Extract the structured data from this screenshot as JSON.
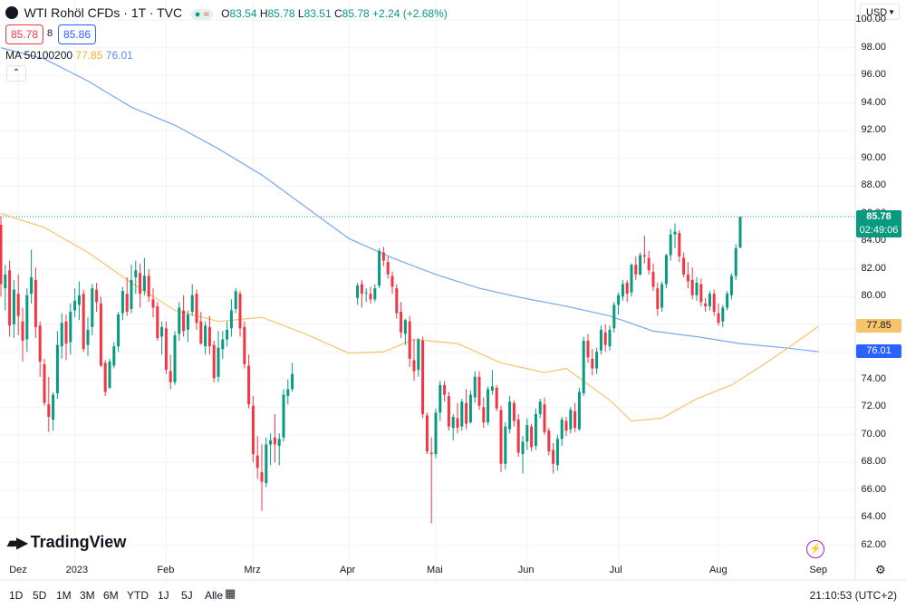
{
  "header": {
    "symbol": "WTI Rohöl CFDs · 1T · TVC",
    "ohlc": {
      "o_label": "O",
      "o": "83.54",
      "h_label": "H",
      "h": "85.78",
      "l_label": "L",
      "l": "83.51",
      "c_label": "C",
      "c": "85.78",
      "change": "+2.24 (+2.68%)"
    },
    "bid": "85.78",
    "spread": "8",
    "ask": "85.86",
    "ma_label": "MA 50100200",
    "ma1_value": "77.85",
    "ma2_value": "76.01",
    "currency": "USD"
  },
  "price_labels": {
    "last": "85.78",
    "countdown": "02:49:06",
    "ma1": "77.85",
    "ma2": "76.01"
  },
  "logo_text": "TradingView",
  "timeframes": [
    "1D",
    "5D",
    "1M",
    "3M",
    "6M",
    "YTD",
    "1J",
    "5J",
    "Alle"
  ],
  "clock": "21:10:53 (UTC+2)",
  "colors": {
    "up": "#089981",
    "down": "#f23645",
    "ma1": "#f7c46c",
    "ma2": "#7aa7f0",
    "grid": "#f0f3fa",
    "bid_text": "#f23645",
    "ask_text": "#2962ff"
  },
  "chart_data": {
    "type": "candlestick",
    "title": "WTI Rohöl CFDs · 1T · TVC",
    "ylim": [
      61,
      101
    ],
    "y_ticks": [
      "62.00",
      "64.00",
      "66.00",
      "68.00",
      "70.00",
      "72.00",
      "74.00",
      "76.00",
      "78.00",
      "80.00",
      "82.00",
      "84.00",
      "86.00",
      "88.00",
      "90.00",
      "92.00",
      "94.00",
      "96.00",
      "98.00",
      "100.00"
    ],
    "x_ticks": [
      {
        "label": "Dez",
        "index": 4
      },
      {
        "label": "2023",
        "index": 17
      },
      {
        "label": "Feb",
        "index": 38
      },
      {
        "label": "Mrz",
        "index": 58
      },
      {
        "label": "Apr",
        "index": 80
      },
      {
        "label": "Mai",
        "index": 100
      },
      {
        "label": "Jun",
        "index": 121
      },
      {
        "label": "Jul",
        "index": 142
      },
      {
        "label": "Aug",
        "index": 165
      },
      {
        "label": "Sep",
        "index": 188
      }
    ],
    "ohlc": [
      [
        85.2,
        85.8,
        80.0,
        80.9
      ],
      [
        80.6,
        82.3,
        79.0,
        81.6
      ],
      [
        81.9,
        82.6,
        77.1,
        77.9
      ],
      [
        78.0,
        81.2,
        77.0,
        80.5
      ],
      [
        80.2,
        81.6,
        77.2,
        78.6
      ],
      [
        78.2,
        79.2,
        75.3,
        76.8
      ],
      [
        76.9,
        80.6,
        76.0,
        80.1
      ],
      [
        80.2,
        83.4,
        79.5,
        81.4
      ],
      [
        81.2,
        82.1,
        77.0,
        77.8
      ],
      [
        77.9,
        78.2,
        74.2,
        75.3
      ],
      [
        75.1,
        75.5,
        72.1,
        72.3
      ],
      [
        72.2,
        74.2,
        70.2,
        71.3
      ],
      [
        71.1,
        73.1,
        70.3,
        72.9
      ],
      [
        73.0,
        77.5,
        72.6,
        76.5
      ],
      [
        76.4,
        78.8,
        75.5,
        78.1
      ],
      [
        78.2,
        78.7,
        75.4,
        76.6
      ],
      [
        76.7,
        79.5,
        75.8,
        78.9
      ],
      [
        79.0,
        80.6,
        78.5,
        79.7
      ],
      [
        79.4,
        81.1,
        78.3,
        80.1
      ],
      [
        80.2,
        80.5,
        76.0,
        76.2
      ],
      [
        76.5,
        78.5,
        75.7,
        77.6
      ],
      [
        77.8,
        80.9,
        77.2,
        80.6
      ],
      [
        80.5,
        81.0,
        78.9,
        79.6
      ],
      [
        79.5,
        80.0,
        74.9,
        75.0
      ],
      [
        75.2,
        75.4,
        72.8,
        73.1
      ],
      [
        73.4,
        75.5,
        73.3,
        75.3
      ],
      [
        75.0,
        76.7,
        74.8,
        76.4
      ],
      [
        76.4,
        78.9,
        76.0,
        78.7
      ],
      [
        78.8,
        80.7,
        78.3,
        80.4
      ],
      [
        80.2,
        81.4,
        78.6,
        78.9
      ],
      [
        79.1,
        82.3,
        78.8,
        81.2
      ],
      [
        81.4,
        82.6,
        80.2,
        81.9
      ],
      [
        81.7,
        82.4,
        79.2,
        80.2
      ],
      [
        80.4,
        82.8,
        80.1,
        81.5
      ],
      [
        81.5,
        82.0,
        79.6,
        80.0
      ],
      [
        79.8,
        80.6,
        78.5,
        79.2
      ],
      [
        79.3,
        79.6,
        76.8,
        77.0
      ],
      [
        77.1,
        78.2,
        75.8,
        77.8
      ],
      [
        77.7,
        78.2,
        74.4,
        74.7
      ],
      [
        74.6,
        75.8,
        73.3,
        73.8
      ],
      [
        73.8,
        77.5,
        73.6,
        77.2
      ],
      [
        77.3,
        79.6,
        76.8,
        79.2
      ],
      [
        79.0,
        80.1,
        77.1,
        77.5
      ],
      [
        77.6,
        79.0,
        76.7,
        78.7
      ],
      [
        78.9,
        80.9,
        78.6,
        80.1
      ],
      [
        80.2,
        80.5,
        77.6,
        78.1
      ],
      [
        78.2,
        78.9,
        76.5,
        76.6
      ],
      [
        76.4,
        78.2,
        75.8,
        77.9
      ],
      [
        77.8,
        78.6,
        75.8,
        76.4
      ],
      [
        76.5,
        76.8,
        73.8,
        74.1
      ],
      [
        74.2,
        77.5,
        73.8,
        76.3
      ],
      [
        76.2,
        77.5,
        75.5,
        76.9
      ],
      [
        76.9,
        78.2,
        76.4,
        77.6
      ],
      [
        77.7,
        79.8,
        77.1,
        79.0
      ],
      [
        79.1,
        80.6,
        78.8,
        80.4
      ],
      [
        80.2,
        80.4,
        77.1,
        77.7
      ],
      [
        77.8,
        78.2,
        74.8,
        75.1
      ],
      [
        75.0,
        75.8,
        71.9,
        72.2
      ],
      [
        72.1,
        72.8,
        68.0,
        68.6
      ],
      [
        68.5,
        69.9,
        66.8,
        67.6
      ],
      [
        67.3,
        69.3,
        64.5,
        66.6
      ],
      [
        66.5,
        69.8,
        66.2,
        69.3
      ],
      [
        69.3,
        70.1,
        67.8,
        69.6
      ],
      [
        69.8,
        71.5,
        68.0,
        69.3
      ],
      [
        69.2,
        70.1,
        67.8,
        69.7
      ],
      [
        69.8,
        73.3,
        69.5,
        72.9
      ],
      [
        72.8,
        74.0,
        72.2,
        73.3
      ],
      [
        73.3,
        75.2,
        73.1,
        74.4
      ],
      [
        79.9,
        81.0,
        79.4,
        80.8
      ],
      [
        80.9,
        81.2,
        79.2,
        80.2
      ],
      [
        80.3,
        80.6,
        79.6,
        80.3
      ],
      [
        80.2,
        80.7,
        79.5,
        79.8
      ],
      [
        79.8,
        80.9,
        79.6,
        80.6
      ],
      [
        80.8,
        83.5,
        80.6,
        83.3
      ],
      [
        83.2,
        83.6,
        82.2,
        82.6
      ],
      [
        82.5,
        82.9,
        81.3,
        81.6
      ],
      [
        81.5,
        81.8,
        80.2,
        80.7
      ],
      [
        80.6,
        80.9,
        78.4,
        78.8
      ],
      [
        78.9,
        79.6,
        77.0,
        77.4
      ],
      [
        77.3,
        78.4,
        76.5,
        78.3
      ],
      [
        78.2,
        78.6,
        74.9,
        75.5
      ],
      [
        75.4,
        76.9,
        73.9,
        74.6
      ],
      [
        74.7,
        77.0,
        74.2,
        76.9
      ],
      [
        76.8,
        77.1,
        71.2,
        71.5
      ],
      [
        71.4,
        71.6,
        68.6,
        68.8
      ],
      [
        68.7,
        69.8,
        63.6,
        68.6
      ],
      [
        68.6,
        71.9,
        68.3,
        71.6
      ],
      [
        71.6,
        73.9,
        71.0,
        73.6
      ],
      [
        73.6,
        73.9,
        72.4,
        72.9
      ],
      [
        72.8,
        73.1,
        70.3,
        70.6
      ],
      [
        70.5,
        71.5,
        69.6,
        71.3
      ],
      [
        71.2,
        72.3,
        70.1,
        70.5
      ],
      [
        70.6,
        72.6,
        70.3,
        72.4
      ],
      [
        72.3,
        73.3,
        70.4,
        70.8
      ],
      [
        70.9,
        73.2,
        70.8,
        72.9
      ],
      [
        72.7,
        74.6,
        72.3,
        74.2
      ],
      [
        74.2,
        74.6,
        71.8,
        72.1
      ],
      [
        72.0,
        72.7,
        70.5,
        70.9
      ],
      [
        70.9,
        73.5,
        70.7,
        73.3
      ],
      [
        73.2,
        74.7,
        72.9,
        73.5
      ],
      [
        73.4,
        73.6,
        71.7,
        71.9
      ],
      [
        71.8,
        72.1,
        67.3,
        67.9
      ],
      [
        67.9,
        70.9,
        67.5,
        70.6
      ],
      [
        70.4,
        72.8,
        70.1,
        72.4
      ],
      [
        72.3,
        72.5,
        70.6,
        71.0
      ],
      [
        71.1,
        71.5,
        68.4,
        68.7
      ],
      [
        68.6,
        69.9,
        67.2,
        69.5
      ],
      [
        69.5,
        71.2,
        68.9,
        70.7
      ],
      [
        70.6,
        70.8,
        68.8,
        69.1
      ],
      [
        69.2,
        71.9,
        68.9,
        71.5
      ],
      [
        71.5,
        72.6,
        71.2,
        72.4
      ],
      [
        72.2,
        72.7,
        70.0,
        70.2
      ],
      [
        70.3,
        70.5,
        68.5,
        68.8
      ],
      [
        68.9,
        69.4,
        67.2,
        67.9
      ],
      [
        67.8,
        70.0,
        67.4,
        69.7
      ],
      [
        69.7,
        71.3,
        69.2,
        71.1
      ],
      [
        71.0,
        71.3,
        69.9,
        70.3
      ],
      [
        70.4,
        72.0,
        70.1,
        71.8
      ],
      [
        71.7,
        72.3,
        70.2,
        70.5
      ],
      [
        70.4,
        73.4,
        70.3,
        73.1
      ],
      [
        73.0,
        77.1,
        72.8,
        76.8
      ],
      [
        76.8,
        77.3,
        75.2,
        75.6
      ],
      [
        75.5,
        76.2,
        74.3,
        74.8
      ],
      [
        74.8,
        76.3,
        74.4,
        76.0
      ],
      [
        76.1,
        77.9,
        75.8,
        77.6
      ],
      [
        77.4,
        78.0,
        76.0,
        76.5
      ],
      [
        76.4,
        77.9,
        76.1,
        77.6
      ],
      [
        77.7,
        79.6,
        77.4,
        79.4
      ],
      [
        79.4,
        80.3,
        78.7,
        80.1
      ],
      [
        80.0,
        81.2,
        79.7,
        80.9
      ],
      [
        81.0,
        81.2,
        79.6,
        80.2
      ],
      [
        80.3,
        82.4,
        80.0,
        82.3
      ],
      [
        82.3,
        82.9,
        81.2,
        81.6
      ],
      [
        81.6,
        83.2,
        81.5,
        83.0
      ],
      [
        83.0,
        84.4,
        82.4,
        82.9
      ],
      [
        82.8,
        83.3,
        81.6,
        81.9
      ],
      [
        81.8,
        82.4,
        80.4,
        80.7
      ],
      [
        80.6,
        81.0,
        78.6,
        79.1
      ],
      [
        79.2,
        81.1,
        78.9,
        80.9
      ],
      [
        80.9,
        83.1,
        80.6,
        83.0
      ],
      [
        83.0,
        84.9,
        82.6,
        84.5
      ],
      [
        84.5,
        85.3,
        83.5,
        84.7
      ],
      [
        84.6,
        84.8,
        82.5,
        82.9
      ],
      [
        82.8,
        83.2,
        81.4,
        81.6
      ],
      [
        81.6,
        82.5,
        80.6,
        81.1
      ],
      [
        81.2,
        82.1,
        79.8,
        80.1
      ],
      [
        80.1,
        81.4,
        79.7,
        81.0
      ],
      [
        80.9,
        81.3,
        79.3,
        79.6
      ],
      [
        79.5,
        79.9,
        78.9,
        79.3
      ],
      [
        79.3,
        80.4,
        79.0,
        80.2
      ],
      [
        80.2,
        80.5,
        78.6,
        78.9
      ],
      [
        78.8,
        79.5,
        77.9,
        78.1
      ],
      [
        78.2,
        79.4,
        77.8,
        79.2
      ],
      [
        79.2,
        80.4,
        79.0,
        80.2
      ],
      [
        80.1,
        81.7,
        79.8,
        81.5
      ],
      [
        81.5,
        83.8,
        81.2,
        83.5
      ],
      [
        83.54,
        85.78,
        83.51,
        85.78
      ]
    ],
    "candles_layout_index": [
      0,
      1,
      2,
      3,
      4,
      5,
      6,
      7,
      8,
      9,
      10,
      11,
      12,
      13,
      14,
      15,
      16,
      17,
      18,
      19,
      20,
      21,
      22,
      23,
      24,
      25,
      26,
      27,
      28,
      29,
      30,
      31,
      32,
      33,
      34,
      35,
      36,
      37,
      38,
      39,
      40,
      41,
      42,
      43,
      44,
      45,
      46,
      47,
      48,
      49,
      50,
      51,
      52,
      53,
      54,
      55,
      56,
      57,
      58,
      59,
      60,
      61,
      62,
      63,
      64,
      65,
      66,
      67,
      82,
      83,
      84,
      85,
      86,
      87,
      88,
      89,
      90,
      91,
      92,
      93,
      94,
      95,
      96,
      97,
      98,
      99,
      100,
      101,
      102,
      103,
      104,
      105,
      106,
      107,
      108,
      109,
      110,
      111,
      112,
      113,
      114,
      115,
      116,
      117,
      118,
      119,
      120,
      121,
      122,
      123,
      124,
      125,
      126,
      127,
      128,
      129,
      130,
      131,
      132,
      133,
      134,
      135,
      136,
      137,
      138,
      139,
      140,
      141,
      142,
      143,
      144,
      145,
      146,
      147,
      148,
      149,
      150,
      151,
      152,
      153,
      154,
      155,
      156,
      157,
      158,
      159,
      160,
      161,
      162,
      163,
      164,
      165,
      166,
      167,
      168,
      169,
      170,
      171,
      172,
      173,
      174,
      175,
      176,
      177,
      178,
      179,
      180,
      181,
      182,
      183,
      184,
      185
    ],
    "series": [
      {
        "name": "MA 50",
        "key": "ma1",
        "points": [
          [
            0,
            86.0
          ],
          [
            10,
            85.0
          ],
          [
            20,
            83.2
          ],
          [
            30,
            81.0
          ],
          [
            40,
            79.0
          ],
          [
            50,
            78.2
          ],
          [
            60,
            78.5
          ],
          [
            70,
            77.3
          ],
          [
            80,
            75.9
          ],
          [
            88,
            76.0
          ],
          [
            95,
            76.9
          ],
          [
            105,
            76.6
          ],
          [
            115,
            75.2
          ],
          [
            125,
            74.5
          ],
          [
            130,
            74.8
          ],
          [
            140,
            72.5
          ],
          [
            145,
            71.0
          ],
          [
            152,
            71.2
          ],
          [
            160,
            72.6
          ],
          [
            168,
            73.6
          ],
          [
            175,
            75.0
          ],
          [
            182,
            76.5
          ],
          [
            188,
            77.85
          ]
        ]
      },
      {
        "name": "MA 200",
        "key": "ma2",
        "points": [
          [
            0,
            98.0
          ],
          [
            10,
            97.2
          ],
          [
            20,
            95.6
          ],
          [
            30,
            93.7
          ],
          [
            40,
            92.4
          ],
          [
            50,
            90.7
          ],
          [
            60,
            88.8
          ],
          [
            70,
            86.5
          ],
          [
            80,
            84.2
          ],
          [
            90,
            82.8
          ],
          [
            100,
            81.6
          ],
          [
            110,
            80.6
          ],
          [
            120,
            79.9
          ],
          [
            130,
            79.3
          ],
          [
            140,
            78.6
          ],
          [
            150,
            77.5
          ],
          [
            160,
            77.1
          ],
          [
            170,
            76.6
          ],
          [
            180,
            76.3
          ],
          [
            188,
            76.01
          ]
        ]
      }
    ]
  }
}
